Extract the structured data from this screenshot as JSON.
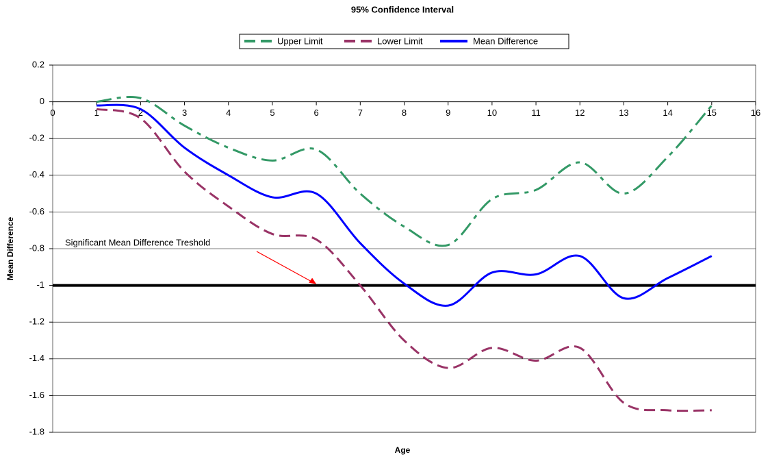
{
  "chart_data": {
    "type": "line",
    "title": "95% Confidence Interval",
    "x_label": "Age",
    "y_label": "Mean Difference",
    "x": [
      1,
      2,
      3,
      4,
      5,
      6,
      7,
      8,
      9,
      10,
      11,
      12,
      13,
      14,
      15
    ],
    "series": [
      {
        "name": "Upper Limit",
        "color": "#339966",
        "dash": "22,8,6,8",
        "values": [
          0,
          0.02,
          -0.13,
          -0.25,
          -0.32,
          -0.26,
          -0.5,
          -0.68,
          -0.78,
          -0.53,
          -0.48,
          -0.33,
          -0.5,
          -0.3,
          -0.02
        ]
      },
      {
        "name": "Lower Limit",
        "color": "#993366",
        "dash": "16,8",
        "values": [
          -0.04,
          -0.09,
          -0.38,
          -0.57,
          -0.72,
          -0.75,
          -1.0,
          -1.3,
          -1.45,
          -1.34,
          -1.41,
          -1.34,
          -1.64,
          -1.68,
          -1.68
        ]
      },
      {
        "name": "Mean Difference",
        "color": "#0000ff",
        "dash": "none",
        "values": [
          -0.02,
          -0.04,
          -0.25,
          -0.4,
          -0.52,
          -0.5,
          -0.77,
          -0.99,
          -1.11,
          -0.93,
          -0.94,
          -0.84,
          -1.07,
          -0.96,
          -0.84
        ]
      }
    ],
    "threshold": -1,
    "annotation": "Significant Mean Difference Treshold",
    "annotation_x": 6,
    "xlim": [
      0,
      16
    ],
    "xticks": [
      0,
      1,
      2,
      3,
      4,
      5,
      6,
      7,
      8,
      9,
      10,
      11,
      12,
      13,
      14,
      15,
      16
    ],
    "ylim": [
      -1.8,
      0.2
    ],
    "yticks": [
      0.2,
      0,
      -0.2,
      -0.4,
      -0.6,
      -0.8,
      -1,
      -1.2,
      -1.4,
      -1.6,
      -1.8
    ],
    "grid": true
  }
}
